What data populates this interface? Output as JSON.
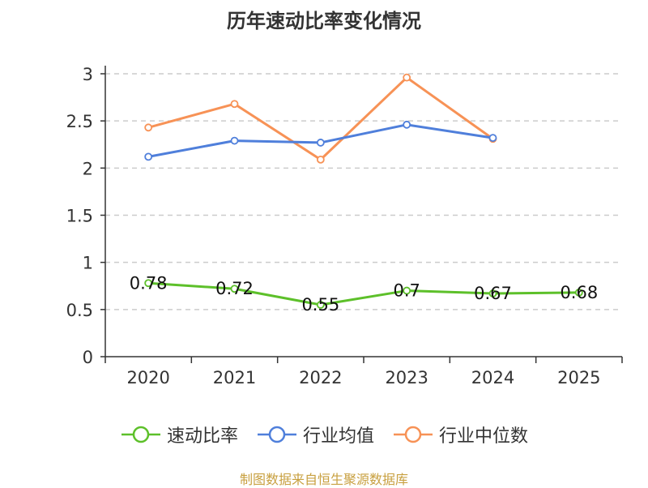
{
  "title": "历年速动比率变化情况",
  "source": "制图数据来自恒生聚源数据库",
  "chart_data": {
    "type": "line",
    "title": "历年速动比率变化情况",
    "categories": [
      "2020",
      "2021",
      "2022",
      "2023",
      "2024",
      "2025"
    ],
    "ylim": [
      0,
      3
    ],
    "yticks": [
      0,
      0.5,
      1,
      1.5,
      2,
      2.5,
      3
    ],
    "ytick_labels": [
      "0",
      "0.5",
      "1",
      "1.5",
      "2",
      "2.5",
      "3"
    ],
    "grid": true,
    "legend_position": "bottom",
    "series": [
      {
        "name": "速动比率",
        "color": "#5dc02a",
        "values": [
          0.78,
          0.72,
          0.55,
          0.7,
          0.67,
          0.68
        ],
        "labels": [
          "0.78",
          "0.72",
          "0.55",
          "0.7",
          "0.67",
          "0.68"
        ]
      },
      {
        "name": "行业均值",
        "color": "#4f7fdb",
        "values": [
          2.12,
          2.29,
          2.27,
          2.46,
          2.32,
          null
        ]
      },
      {
        "name": "行业中位数",
        "color": "#f79256",
        "values": [
          2.43,
          2.68,
          2.09,
          2.96,
          2.31,
          null
        ]
      }
    ]
  }
}
